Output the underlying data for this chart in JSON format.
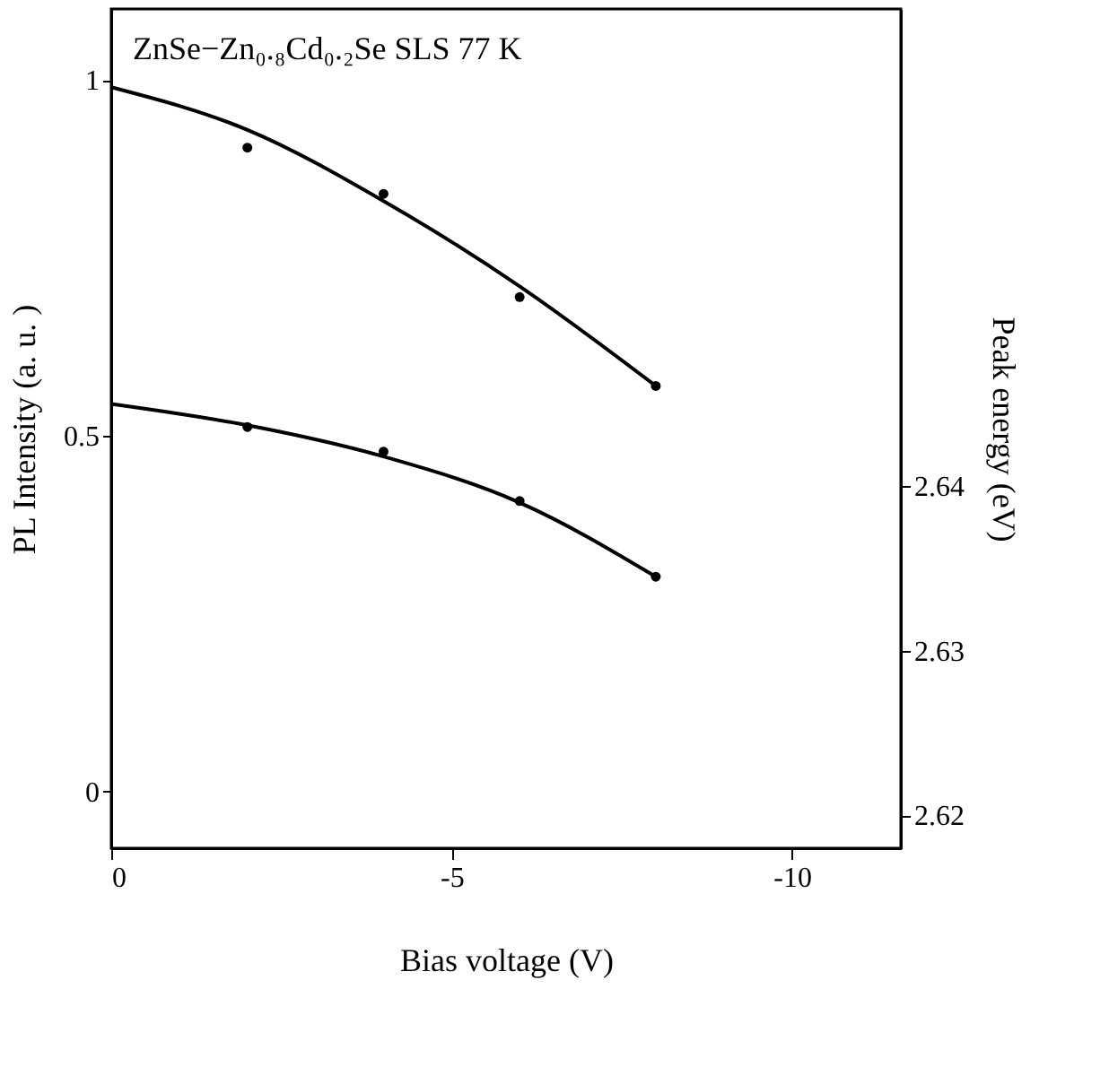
{
  "chart_data": {
    "type": "scatter",
    "xlabel": "Bias voltage (V)",
    "ylabel": "PL Intensity (a. u. )",
    "y2label": "Peak energy (eV)",
    "annotations": [
      "ZnSe−Zn₀.₈Cd₀.₂Se  SLS 77 K"
    ],
    "xlim": [
      0,
      -11.6
    ],
    "xticks": [
      0,
      -5,
      -10
    ],
    "ylim": [
      -0.08,
      1.1
    ],
    "yticks": [
      0,
      0.5,
      1
    ],
    "y2lim": [
      2.618,
      2.669
    ],
    "y2ticks": [
      2.62,
      2.63,
      2.64
    ],
    "grid": false,
    "marker": "circle",
    "line_style": "solid",
    "series": [
      {
        "color": "#000000",
        "x": [
          -2,
          -4,
          -6,
          -8
        ],
        "values": [
          0.905,
          0.84,
          0.695,
          0.57
        ]
      },
      {
        "type": "line",
        "marker": "none",
        "color": "#000000",
        "x": [
          0,
          -2,
          -4,
          -6,
          -8
        ],
        "values": [
          0.99,
          0.93,
          0.83,
          0.71,
          0.57
        ]
      },
      {
        "axis": "y2",
        "color": "#000000",
        "x": [
          -2,
          -4,
          -6,
          -8
        ],
        "values": [
          2.6436,
          2.6421,
          2.6391,
          2.6345
        ]
      },
      {
        "type": "line",
        "marker": "none",
        "axis": "y2",
        "color": "#000000",
        "x": [
          0,
          -2,
          -4,
          -6,
          -8
        ],
        "values": [
          2.645,
          2.6437,
          2.6418,
          2.639,
          2.6345
        ]
      }
    ]
  }
}
